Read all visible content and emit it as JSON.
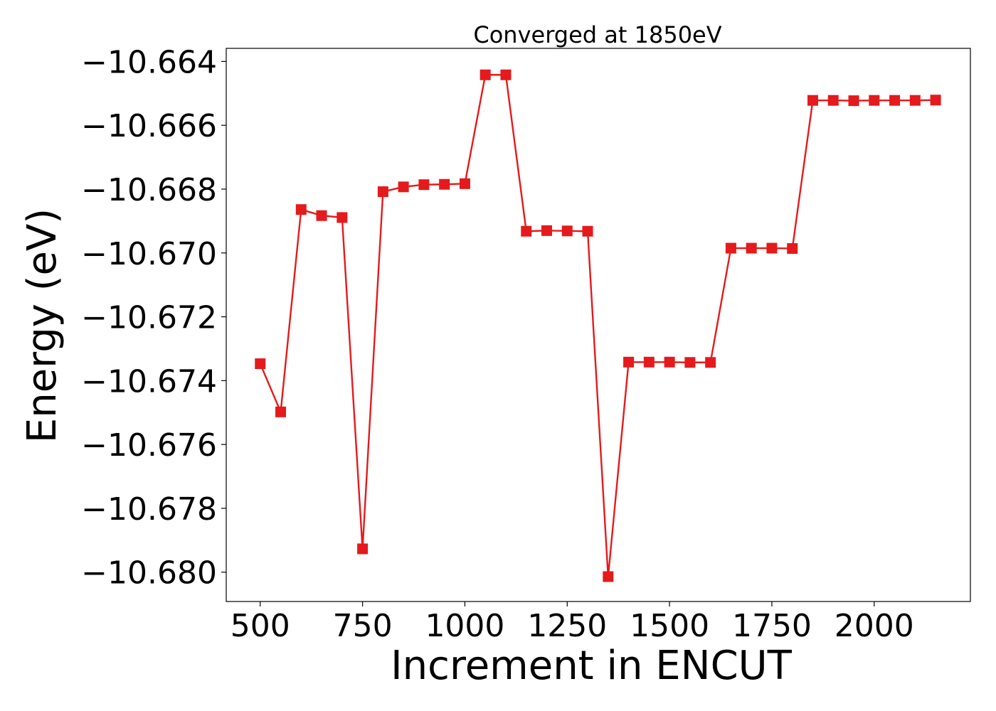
{
  "chart_data": {
    "type": "line",
    "title": "Converged at 1850eV",
    "xlabel": "Increment in ENCUT",
    "ylabel": "Energy (eV)",
    "xlim": [
      417,
      2235
    ],
    "ylim": [
      -10.68092,
      -10.66359
    ],
    "x_ticks": [
      500,
      750,
      1000,
      1250,
      1500,
      1750,
      2000
    ],
    "x_tick_labels": [
      "500",
      "750",
      "1000",
      "1250",
      "1500",
      "1750",
      "2000"
    ],
    "y_ticks": [
      -10.664,
      -10.666,
      -10.668,
      -10.67,
      -10.672,
      -10.674,
      -10.676,
      -10.678,
      -10.68
    ],
    "y_tick_labels": [
      "−10.664",
      "−10.666",
      "−10.668",
      "−10.670",
      "−10.672",
      "−10.674",
      "−10.676",
      "−10.678",
      "−10.680"
    ],
    "grid": false,
    "series": [
      {
        "color": "#e41a1c",
        "marker": "square",
        "x": [
          500,
          550,
          600,
          650,
          700,
          750,
          800,
          850,
          900,
          950,
          1000,
          1050,
          1100,
          1150,
          1200,
          1250,
          1300,
          1350,
          1400,
          1450,
          1500,
          1550,
          1600,
          1650,
          1700,
          1750,
          1800,
          1850,
          1900,
          1950,
          2000,
          2050,
          2100,
          2150
        ],
        "values": [
          -10.67347,
          -10.67498,
          -10.66864,
          -10.66883,
          -10.66889,
          -10.67927,
          -10.66808,
          -10.66793,
          -10.66786,
          -10.66785,
          -10.66783,
          -10.66442,
          -10.66442,
          -10.66932,
          -10.6693,
          -10.66931,
          -10.66932,
          -10.68014,
          -10.67342,
          -10.67342,
          -10.67342,
          -10.67343,
          -10.67343,
          -10.66985,
          -10.66985,
          -10.66985,
          -10.66986,
          -10.66522,
          -10.66522,
          -10.66523,
          -10.66522,
          -10.66522,
          -10.66522,
          -10.66521
        ]
      }
    ]
  }
}
